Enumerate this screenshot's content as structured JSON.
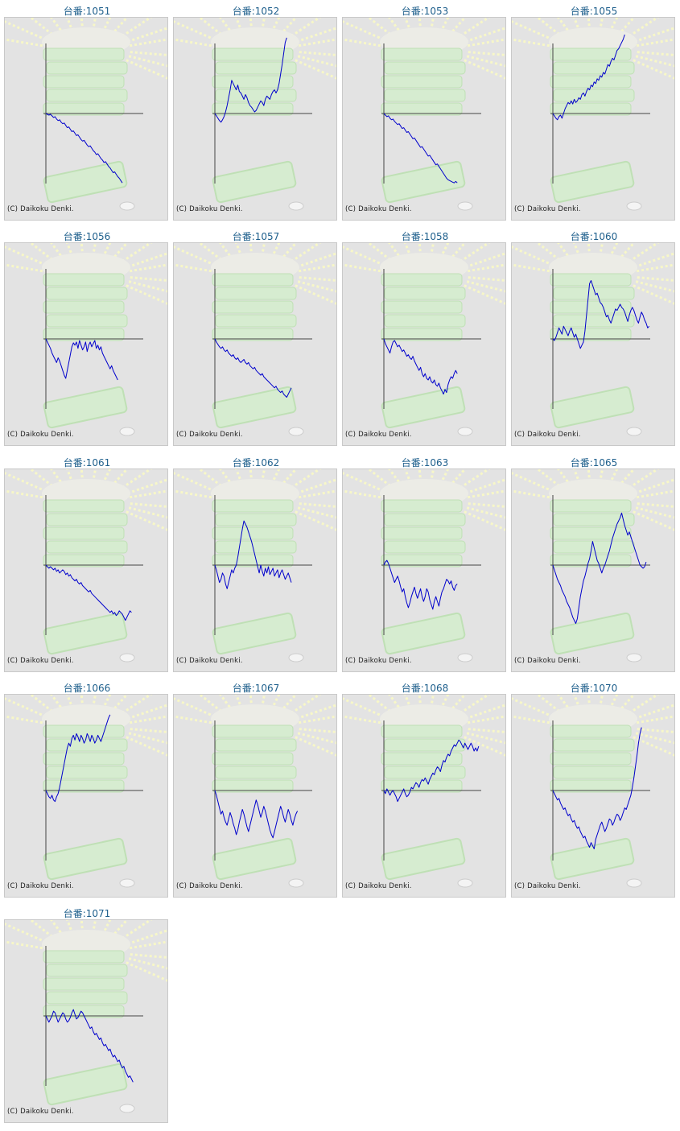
{
  "copyright": "(C) Daikoku Denki.",
  "title_prefix": "台番:",
  "colors": {
    "title": "#1e5f8c",
    "line": "#0000cc",
    "axis": "#444444",
    "panel_bg": "#e3e3e3",
    "rays": "#f7f7c8",
    "drums": "#d6ecd0",
    "drums_edge": "#bfe0b5"
  },
  "machines": [
    {
      "id": "1051",
      "series": [
        0,
        -1,
        -2,
        -1,
        -3,
        -5,
        -4,
        -7,
        -9,
        -8,
        -11,
        -13,
        -12,
        -15,
        -18,
        -17,
        -20,
        -23,
        -22,
        -25,
        -28,
        -27,
        -30,
        -33,
        -35,
        -34,
        -37,
        -40,
        -42,
        -41,
        -44,
        -47,
        -49,
        -52,
        -51,
        -54,
        -57,
        -59,
        -62,
        -61,
        -64,
        -67,
        -69,
        -72,
        -75,
        -74,
        -77,
        -80,
        -82,
        -85,
        -88
      ]
    },
    {
      "id": "1052",
      "series": [
        0,
        -3,
        -6,
        -9,
        -11,
        -8,
        -4,
        2,
        10,
        20,
        30,
        42,
        38,
        34,
        30,
        36,
        28,
        26,
        22,
        18,
        24,
        20,
        14,
        10,
        8,
        5,
        2,
        4,
        8,
        12,
        16,
        14,
        10,
        18,
        22,
        20,
        18,
        24,
        28,
        30,
        26,
        30,
        38,
        50,
        62,
        76,
        90,
        96
      ]
    },
    {
      "id": "1053",
      "series": [
        0,
        -2,
        -4,
        -3,
        -6,
        -8,
        -7,
        -10,
        -12,
        -14,
        -13,
        -16,
        -19,
        -18,
        -21,
        -24,
        -23,
        -26,
        -29,
        -32,
        -31,
        -34,
        -37,
        -40,
        -43,
        -42,
        -45,
        -48,
        -51,
        -54,
        -53,
        -56,
        -59,
        -62,
        -65,
        -64,
        -67,
        -70,
        -73,
        -76,
        -79,
        -82,
        -84,
        -85,
        -86,
        -87,
        -88,
        -86,
        -88
      ]
    },
    {
      "id": "1055",
      "series": [
        0,
        -3,
        -6,
        -8,
        -4,
        -2,
        -6,
        0,
        6,
        10,
        14,
        12,
        16,
        12,
        18,
        14,
        16,
        20,
        18,
        24,
        26,
        22,
        28,
        32,
        30,
        36,
        34,
        40,
        38,
        44,
        42,
        48,
        46,
        52,
        50,
        56,
        62,
        60,
        66,
        70,
        68,
        74,
        80,
        82,
        86,
        90,
        94,
        100
      ]
    },
    {
      "id": "1056",
      "series": [
        0,
        -4,
        -8,
        -12,
        -18,
        -22,
        -26,
        -30,
        -24,
        -28,
        -34,
        -40,
        -46,
        -50,
        -40,
        -30,
        -20,
        -10,
        -5,
        -8,
        -4,
        -12,
        -2,
        -8,
        -14,
        -10,
        -4,
        -16,
        -8,
        -4,
        -10,
        -6,
        -2,
        -12,
        -8,
        -14,
        -10,
        -18,
        -22,
        -26,
        -30,
        -34,
        -38,
        -34,
        -40,
        -44,
        -48,
        -52
      ]
    },
    {
      "id": "1057",
      "series": [
        0,
        -4,
        -7,
        -10,
        -12,
        -10,
        -14,
        -16,
        -14,
        -18,
        -20,
        -22,
        -20,
        -24,
        -26,
        -24,
        -28,
        -30,
        -28,
        -26,
        -30,
        -32,
        -30,
        -34,
        -36,
        -38,
        -36,
        -40,
        -42,
        -44,
        -46,
        -44,
        -48,
        -50,
        -52,
        -54,
        -56,
        -58,
        -60,
        -62,
        -60,
        -64,
        -66,
        -68,
        -66,
        -70,
        -72,
        -74,
        -70,
        -66,
        -62
      ]
    },
    {
      "id": "1058",
      "series": [
        0,
        -6,
        -10,
        -14,
        -18,
        -10,
        -4,
        -2,
        -6,
        -10,
        -8,
        -12,
        -16,
        -14,
        -18,
        -22,
        -20,
        -24,
        -26,
        -22,
        -28,
        -32,
        -36,
        -40,
        -36,
        -44,
        -48,
        -44,
        -50,
        -52,
        -48,
        -54,
        -56,
        -52,
        -58,
        -60,
        -56,
        -62,
        -66,
        -70,
        -64,
        -68,
        -58,
        -52,
        -48,
        -50,
        -44,
        -40,
        -44
      ]
    },
    {
      "id": "1060",
      "series": [
        0,
        -2,
        2,
        8,
        14,
        10,
        6,
        16,
        12,
        8,
        4,
        10,
        14,
        8,
        2,
        6,
        0,
        -6,
        -12,
        -8,
        -4,
        10,
        30,
        50,
        70,
        74,
        68,
        62,
        56,
        58,
        52,
        46,
        44,
        40,
        34,
        28,
        30,
        24,
        20,
        26,
        32,
        38,
        36,
        40,
        44,
        40,
        38,
        34,
        28,
        22,
        30,
        36,
        40,
        36,
        30,
        24,
        20,
        28,
        34,
        30,
        24,
        20,
        14,
        16
      ]
    },
    {
      "id": "1061",
      "series": [
        0,
        -2,
        -4,
        -2,
        -4,
        -6,
        -4,
        -8,
        -6,
        -10,
        -8,
        -6,
        -8,
        -12,
        -10,
        -14,
        -12,
        -16,
        -18,
        -20,
        -18,
        -22,
        -24,
        -22,
        -26,
        -28,
        -30,
        -32,
        -34,
        -32,
        -36,
        -38,
        -40,
        -42,
        -44,
        -46,
        -48,
        -50,
        -52,
        -54,
        -56,
        -58,
        -60,
        -58,
        -62,
        -60,
        -64,
        -62,
        -58,
        -60,
        -62,
        -66,
        -70,
        -66,
        -62,
        -58,
        -60
      ]
    },
    {
      "id": "1062",
      "series": [
        0,
        -6,
        -14,
        -22,
        -18,
        -10,
        -14,
        -24,
        -30,
        -22,
        -14,
        -6,
        -10,
        -4,
        0,
        10,
        22,
        34,
        46,
        56,
        52,
        48,
        42,
        36,
        30,
        22,
        14,
        6,
        -2,
        -10,
        0,
        -8,
        -14,
        -4,
        -10,
        -2,
        -12,
        -8,
        -4,
        -14,
        -10,
        -6,
        -16,
        -10,
        -6,
        -12,
        -18,
        -14,
        -10,
        -16,
        -22
      ]
    },
    {
      "id": "1063",
      "series": [
        0,
        4,
        6,
        2,
        -4,
        -10,
        -16,
        -22,
        -18,
        -14,
        -20,
        -28,
        -34,
        -30,
        -40,
        -48,
        -54,
        -48,
        -40,
        -34,
        -28,
        -36,
        -42,
        -36,
        -30,
        -40,
        -46,
        -40,
        -30,
        -34,
        -44,
        -50,
        -56,
        -46,
        -40,
        -46,
        -52,
        -42,
        -34,
        -30,
        -24,
        -18,
        -20,
        -24,
        -20,
        -28,
        -32,
        -26,
        -24
      ]
    },
    {
      "id": "1065",
      "series": [
        0,
        -6,
        -12,
        -18,
        -22,
        -26,
        -32,
        -36,
        -40,
        -46,
        -50,
        -54,
        -60,
        -66,
        -70,
        -74,
        -68,
        -54,
        -40,
        -30,
        -20,
        -14,
        -6,
        2,
        8,
        18,
        30,
        22,
        14,
        6,
        2,
        -4,
        -10,
        -4,
        0,
        6,
        12,
        18,
        26,
        34,
        40,
        46,
        52,
        56,
        60,
        66,
        58,
        50,
        44,
        38,
        42,
        36,
        30,
        24,
        18,
        12,
        6,
        0,
        -2,
        -4,
        -2,
        4
      ]
    },
    {
      "id": "1066",
      "series": [
        0,
        -4,
        -8,
        -10,
        -6,
        -12,
        -14,
        -8,
        -4,
        4,
        14,
        24,
        34,
        44,
        54,
        60,
        56,
        66,
        70,
        64,
        72,
        68,
        62,
        70,
        66,
        60,
        64,
        72,
        68,
        62,
        70,
        66,
        60,
        64,
        70,
        66,
        62,
        68,
        74,
        80,
        86,
        92,
        96
      ]
    },
    {
      "id": "1067",
      "series": [
        0,
        -6,
        -14,
        -22,
        -30,
        -26,
        -34,
        -40,
        -44,
        -36,
        -28,
        -34,
        -42,
        -48,
        -56,
        -50,
        -40,
        -32,
        -24,
        -30,
        -38,
        -46,
        -52,
        -44,
        -36,
        -28,
        -20,
        -12,
        -18,
        -26,
        -34,
        -28,
        -20,
        -26,
        -34,
        -42,
        -50,
        -56,
        -60,
        -52,
        -44,
        -36,
        -28,
        -20,
        -26,
        -34,
        -40,
        -32,
        -24,
        -30,
        -38,
        -44,
        -36,
        -30,
        -26
      ]
    },
    {
      "id": "1068",
      "series": [
        0,
        -4,
        2,
        -2,
        -6,
        -2,
        0,
        -4,
        -8,
        -14,
        -10,
        -6,
        -2,
        2,
        -4,
        -8,
        -6,
        -2,
        4,
        2,
        6,
        10,
        8,
        4,
        10,
        14,
        12,
        16,
        12,
        8,
        14,
        18,
        22,
        20,
        26,
        30,
        28,
        24,
        32,
        38,
        36,
        42,
        46,
        44,
        50,
        54,
        58,
        56,
        60,
        64,
        62,
        58,
        54,
        60,
        56,
        52,
        56,
        60,
        56,
        50,
        54,
        50,
        56
      ]
    },
    {
      "id": "1070",
      "series": [
        0,
        -4,
        -8,
        -12,
        -10,
        -16,
        -20,
        -24,
        -22,
        -28,
        -32,
        -30,
        -36,
        -40,
        -38,
        -44,
        -48,
        -46,
        -52,
        -56,
        -60,
        -58,
        -64,
        -68,
        -72,
        -66,
        -70,
        -74,
        -62,
        -56,
        -50,
        -44,
        -40,
        -46,
        -52,
        -48,
        -42,
        -36,
        -38,
        -44,
        -40,
        -34,
        -30,
        -32,
        -38,
        -34,
        -28,
        -22,
        -24,
        -18,
        -12,
        -6,
        4,
        16,
        30,
        44,
        60,
        72,
        80
      ]
    },
    {
      "id": "1071",
      "series": [
        0,
        -4,
        -8,
        -4,
        0,
        6,
        4,
        -2,
        -8,
        -4,
        0,
        4,
        2,
        -4,
        -8,
        -6,
        -2,
        4,
        8,
        2,
        -4,
        -2,
        2,
        6,
        4,
        0,
        -4,
        -8,
        -12,
        -16,
        -14,
        -20,
        -24,
        -22,
        -26,
        -30,
        -28,
        -34,
        -38,
        -36,
        -40,
        -44,
        -42,
        -48,
        -52,
        -50,
        -54,
        -58,
        -56,
        -62,
        -66,
        -64,
        -70,
        -74,
        -78,
        -76,
        -80,
        -84
      ]
    }
  ]
}
